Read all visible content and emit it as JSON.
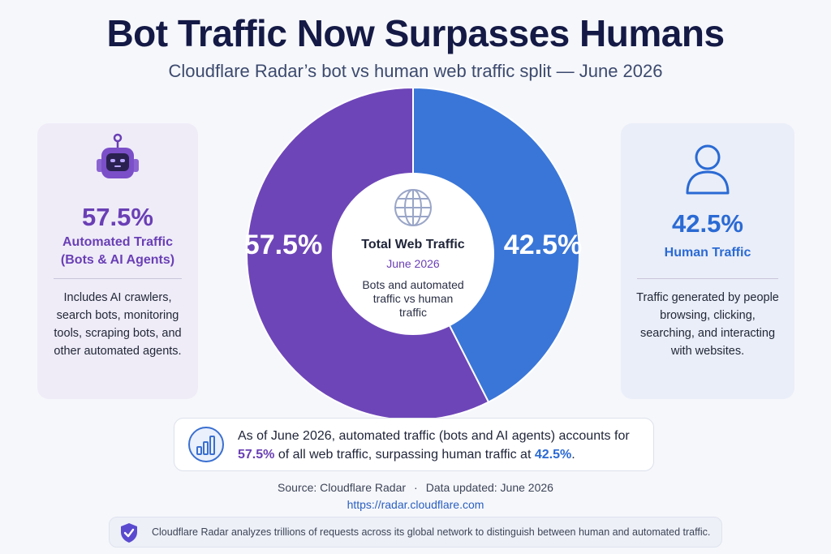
{
  "header": {
    "title": "Bot Traffic Now Surpasses Humans",
    "subtitle": "Cloudflare Radar’s bot vs human web traffic split — June 2026"
  },
  "left_card": {
    "percent": "57.5%",
    "label": "Automated Traffic (Bots & AI Agents)",
    "description": "Includes AI crawlers, search bots, monitoring tools, scraping bots, and other automated agents.",
    "icon": "robot-icon"
  },
  "right_card": {
    "percent": "42.5%",
    "label": "Human Traffic",
    "description": "Traffic generated by people browsing, clicking, searching, and interacting with websites.",
    "icon": "person-icon"
  },
  "center": {
    "title": "Total Web Traffic",
    "date": "June 2026",
    "note": "Bots and automated traffic vs human traffic",
    "icon": "globe-icon"
  },
  "callout": {
    "text_before": "As of June 2026, automated traffic (bots and AI agents) accounts for",
    "bot_pct": "57.5%",
    "text_middle": "of all web traffic, surpassing human traffic at",
    "human_pct": "42.5%",
    "text_after": ".",
    "icon": "bar-chart-icon"
  },
  "source": {
    "source_text": "Source: Cloudflare Radar",
    "separator": "·",
    "updated_text": "Data updated: June 2026",
    "url": "https://radar.cloudflare.com"
  },
  "footer": {
    "text": "Cloudflare Radar analyzes trillions of requests across its global network to distinguish between human and automated traffic.",
    "icon": "shield-icon"
  },
  "colors": {
    "bot": "#6e45b8",
    "human": "#3a76d8",
    "title": "#141a45"
  },
  "chart_data": {
    "type": "pie",
    "categories": [
      "Automated Traffic (Bots & AI Agents)",
      "Human Traffic"
    ],
    "values": [
      57.5,
      42.5
    ],
    "labels": [
      "57.5%",
      "42.5%"
    ],
    "title": "Bot Traffic Now Surpasses Humans"
  }
}
